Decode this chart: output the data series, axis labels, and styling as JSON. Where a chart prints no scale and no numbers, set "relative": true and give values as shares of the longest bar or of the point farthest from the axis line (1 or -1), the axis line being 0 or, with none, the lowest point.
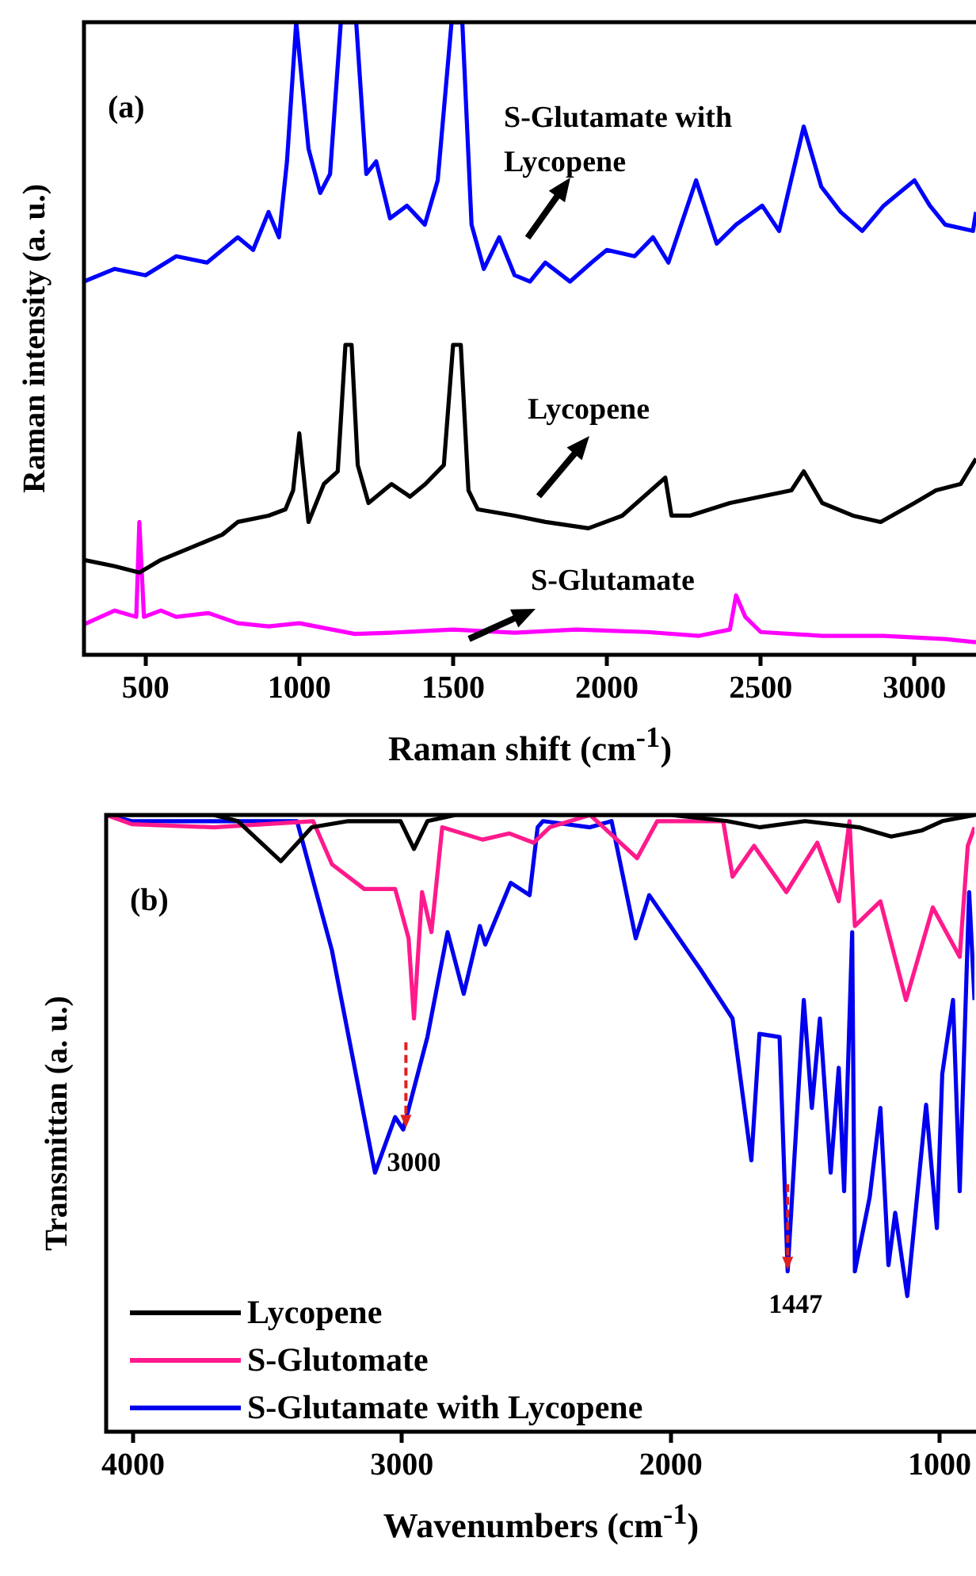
{
  "chart_data": [
    {
      "type": "line",
      "relative": true,
      "xlabel": "Raman shift (cm$^{-1}$)",
      "ylabel": "Raman intensity (a. u.)",
      "xlim": [
        300,
        3200
      ],
      "xticks": [
        500,
        1000,
        1500,
        2000,
        2500,
        3000
      ],
      "legend": false,
      "annotations": [
        "(a)"
      ],
      "series": [
        {
          "name": "S-Glutamate with Lycopene",
          "color": "#0000ff",
          "x": [
            300,
            400,
            500,
            600,
            700,
            800,
            850,
            900,
            934,
            960,
            990,
            1030,
            1068,
            1100,
            1135,
            1185,
            1218,
            1250,
            1295,
            1350,
            1408,
            1450,
            1495,
            1530,
            1560,
            1600,
            1650,
            1700,
            1750,
            1800,
            1880,
            1950,
            2000,
            2090,
            2150,
            2200,
            2290,
            2357,
            2420,
            2505,
            2560,
            2640,
            2697,
            2760,
            2830,
            2900,
            3000,
            3050,
            3100,
            3190,
            3200
          ],
          "values": [
            0.59,
            0.61,
            0.6,
            0.63,
            0.62,
            0.66,
            0.64,
            0.7,
            0.66,
            0.78,
            1,
            0.8,
            0.73,
            0.76,
            1,
            1,
            0.76,
            0.78,
            0.69,
            0.71,
            0.68,
            0.75,
            1,
            1,
            0.68,
            0.61,
            0.66,
            0.6,
            0.59,
            0.62,
            0.59,
            0.62,
            0.64,
            0.63,
            0.66,
            0.62,
            0.75,
            0.65,
            0.68,
            0.71,
            0.67,
            0.835,
            0.74,
            0.7,
            0.67,
            0.71,
            0.75,
            0.71,
            0.68,
            0.67,
            0.7
          ]
        },
        {
          "name": "Lycopene",
          "color": "#000000",
          "x": [
            300,
            400,
            480,
            550,
            650,
            750,
            800,
            900,
            955,
            980,
            1000,
            1030,
            1080,
            1125,
            1150,
            1170,
            1190,
            1225,
            1300,
            1360,
            1410,
            1470,
            1500,
            1525,
            1550,
            1580,
            1700,
            1800,
            1940,
            2050,
            2190,
            2210,
            2270,
            2400,
            2500,
            2600,
            2640,
            2700,
            2800,
            2890,
            3000,
            3070,
            3150,
            3200
          ],
          "values": [
            0.15,
            0.14,
            0.13,
            0.15,
            0.17,
            0.19,
            0.21,
            0.22,
            0.23,
            0.26,
            0.35,
            0.21,
            0.27,
            0.29,
            0.49,
            0.49,
            0.3,
            0.24,
            0.27,
            0.25,
            0.27,
            0.3,
            0.49,
            0.49,
            0.26,
            0.23,
            0.22,
            0.21,
            0.2,
            0.22,
            0.28,
            0.22,
            0.22,
            0.24,
            0.25,
            0.26,
            0.29,
            0.24,
            0.22,
            0.21,
            0.24,
            0.26,
            0.27,
            0.31
          ]
        },
        {
          "name": "S-Glutamate",
          "color": "#ff00ff",
          "x": [
            300,
            400,
            470,
            480,
            495,
            550,
            600,
            705,
            800,
            900,
            1000,
            1180,
            1300,
            1500,
            1700,
            1900,
            2130,
            2300,
            2400,
            2420,
            2450,
            2500,
            2700,
            2900,
            3100,
            3200
          ],
          "values": [
            0.048,
            0.07,
            0.06,
            0.21,
            0.06,
            0.07,
            0.06,
            0.066,
            0.05,
            0.045,
            0.05,
            0.033,
            0.035,
            0.04,
            0.035,
            0.04,
            0.036,
            0.03,
            0.04,
            0.094,
            0.06,
            0.036,
            0.03,
            0.03,
            0.025,
            0.02
          ]
        }
      ]
    },
    {
      "type": "line",
      "relative": true,
      "xlabel": "Wavenumbers (cm$^{-1}$)",
      "ylabel": "Transmittan (a. u.)",
      "xlim": [
        4100,
        870
      ],
      "xticks": [
        4000,
        3000,
        2000,
        1000
      ],
      "legend": "bottom left",
      "annotations": [
        "(b)",
        {
          "text": "3000",
          "x": 2985,
          "y": 0.49
        },
        {
          "text": "1447",
          "x": 1565,
          "y": 0.26
        }
      ],
      "series": [
        {
          "name": "Lycopene",
          "color": "#000000",
          "x": [
            4100,
            4005,
            3700,
            3610,
            3450,
            3335,
            3200,
            3005,
            2955,
            2905,
            2800,
            2000,
            1790,
            1670,
            1500,
            1300,
            1180,
            1065,
            990,
            870
          ],
          "values": [
            1,
            1,
            1,
            0.99,
            0.925,
            0.98,
            0.99,
            0.99,
            0.945,
            0.99,
            1,
            1,
            0.99,
            0.98,
            0.99,
            0.98,
            0.965,
            0.975,
            0.99,
            1
          ]
        },
        {
          "name": "S-Glutomate",
          "color": "#ff1a8c",
          "x": [
            4100,
            4005,
            3700,
            3330,
            3260,
            3140,
            3025,
            2975,
            2955,
            2925,
            2890,
            2850,
            2700,
            2600,
            2510,
            2450,
            2300,
            2125,
            2050,
            1805,
            1770,
            1690,
            1570,
            1455,
            1375,
            1335,
            1315,
            1220,
            1125,
            1025,
            925,
            895,
            870
          ],
          "values": [
            1,
            0.985,
            0.98,
            0.99,
            0.92,
            0.88,
            0.88,
            0.8,
            0.67,
            0.875,
            0.81,
            0.98,
            0.96,
            0.97,
            0.955,
            0.98,
            1,
            0.93,
            0.99,
            0.99,
            0.9,
            0.95,
            0.875,
            0.955,
            0.86,
            0.99,
            0.82,
            0.86,
            0.7,
            0.85,
            0.77,
            0.95,
            0.98
          ]
        },
        {
          "name": "S-Glutamate with Lycopene",
          "color": "#0000ee",
          "x": [
            4100,
            4005,
            3390,
            3260,
            3100,
            3025,
            2995,
            2905,
            2830,
            2770,
            2710,
            2690,
            2595,
            2525,
            2495,
            2475,
            2300,
            2220,
            2130,
            2080,
            1890,
            1770,
            1700,
            1670,
            1595,
            1565,
            1505,
            1475,
            1445,
            1405,
            1375,
            1355,
            1325,
            1315,
            1260,
            1220,
            1190,
            1165,
            1120,
            1050,
            1010,
            990,
            950,
            925,
            890,
            870
          ],
          "values": [
            1,
            0.99,
            0.99,
            0.78,
            0.42,
            0.51,
            0.49,
            0.64,
            0.81,
            0.71,
            0.82,
            0.79,
            0.89,
            0.87,
            0.98,
            0.99,
            0.98,
            0.99,
            0.8,
            0.87,
            0.75,
            0.67,
            0.44,
            0.645,
            0.64,
            0.26,
            0.7,
            0.525,
            0.67,
            0.42,
            0.59,
            0.39,
            0.81,
            0.26,
            0.38,
            0.525,
            0.27,
            0.355,
            0.22,
            0.53,
            0.33,
            0.58,
            0.7,
            0.39,
            0.875,
            0.7
          ]
        }
      ]
    }
  ]
}
